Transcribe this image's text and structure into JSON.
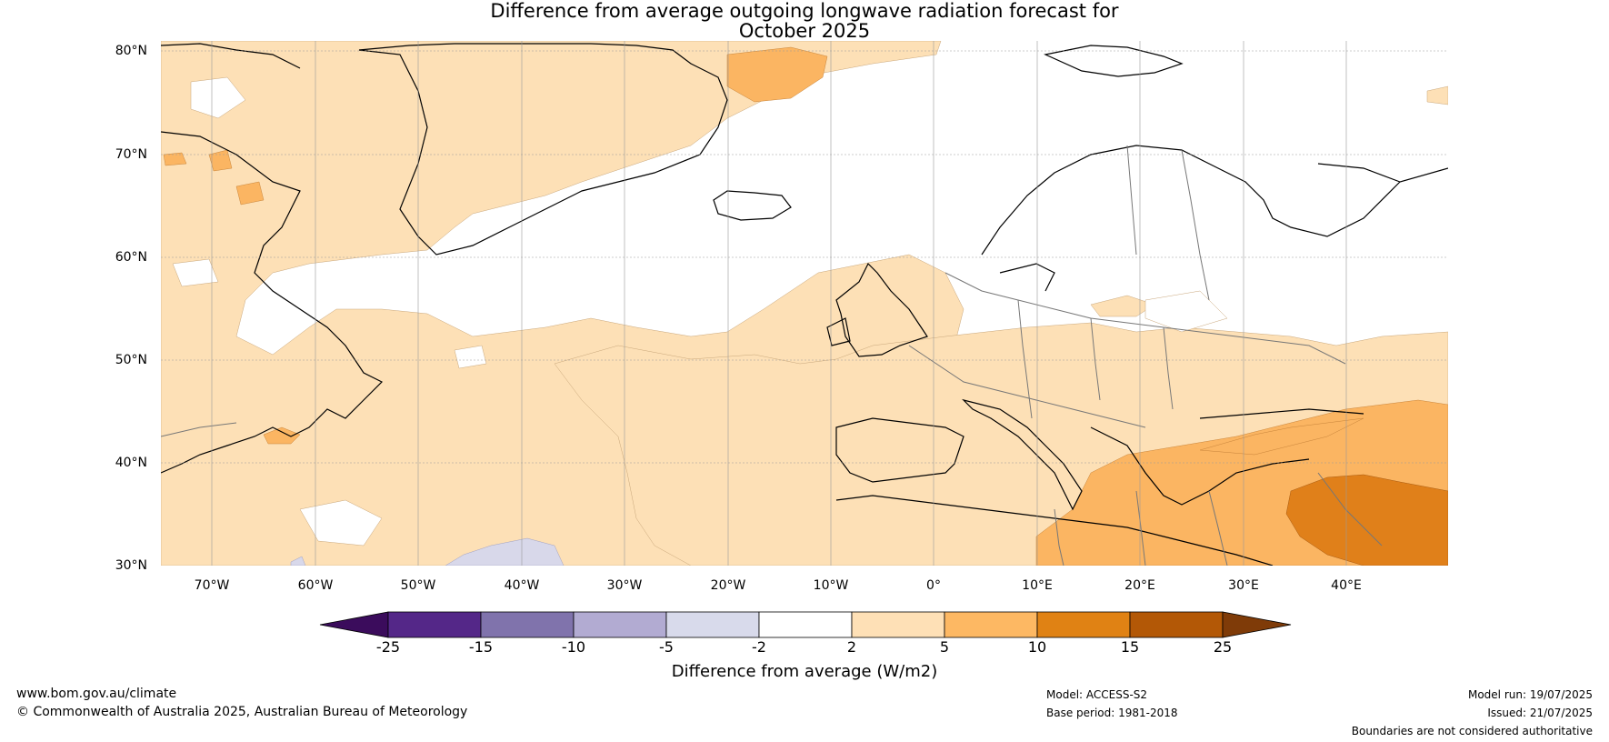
{
  "title": {
    "line1": "Difference from average outgoing longwave radiation forecast for",
    "line2": "October 2025"
  },
  "map": {
    "lat_labels": [
      "80°N",
      "70°N",
      "60°N",
      "50°N",
      "40°N",
      "30°N"
    ],
    "lon_labels": [
      "70°W",
      "60°W",
      "50°W",
      "40°W",
      "30°W",
      "20°W",
      "10°W",
      "0°",
      "10°E",
      "20°E",
      "30°E",
      "40°E"
    ],
    "colors": {
      "light_orange": "#fde0b6",
      "orange": "#fbb562",
      "dark_orange": "#e0801a",
      "light_purple": "#d8d8ea",
      "coast": "#000000",
      "border": "#777777"
    }
  },
  "colorbar": {
    "ticks": [
      "-25",
      "-15",
      "-10",
      "-5",
      "-2",
      "2",
      "5",
      "10",
      "15",
      "25"
    ],
    "colors": [
      "#3b0c5c",
      "#542788",
      "#8073ac",
      "#b2abd2",
      "#d8daeb",
      "#ffffff",
      "#fee0b6",
      "#fdb863",
      "#e08214",
      "#b35806",
      "#7f3b08"
    ],
    "label": "Difference from average (W/m2)"
  },
  "footer": {
    "website": "www.bom.gov.au/climate",
    "copyright": "© Commonwealth of Australia 2025, Australian Bureau of Meteorology",
    "model": "Model: ACCESS-S2",
    "base_period": "Base period: 1981-2018",
    "model_run": "Model run: 19/07/2025",
    "issued": "Issued: 21/07/2025",
    "disclaimer": "Boundaries are not considered authoritative"
  }
}
